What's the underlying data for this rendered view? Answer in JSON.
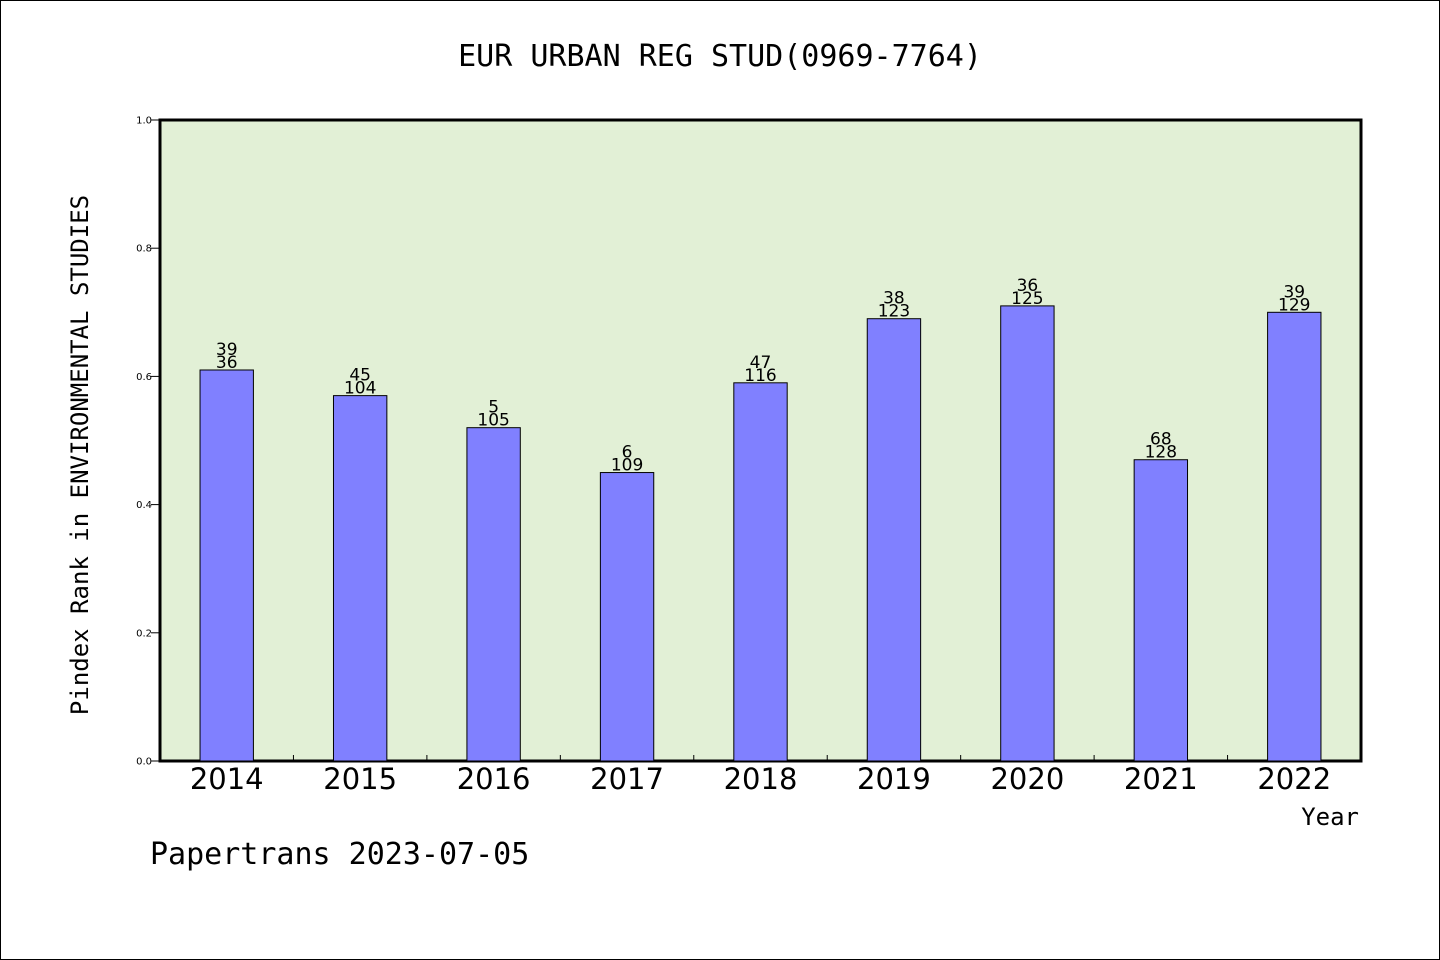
{
  "chart_data": {
    "type": "bar",
    "title": "EUR URBAN REG STUD(0969-7764)",
    "xlabel": "Year",
    "ylabel": "Pindex Rank in ENVIRONMENTAL STUDIES",
    "ylim": [
      0,
      1.0
    ],
    "yticks": [
      "0.0",
      "0.2",
      "0.4",
      "0.6",
      "0.8",
      "1.0"
    ],
    "categories": [
      "2014",
      "2015",
      "2016",
      "2017",
      "2018",
      "2019",
      "2020",
      "2021",
      "2022"
    ],
    "values": [
      0.61,
      0.57,
      0.52,
      0.45,
      0.59,
      0.69,
      0.71,
      0.47,
      0.7
    ],
    "labels_top": [
      "39",
      "45",
      "5",
      "6",
      "47",
      "38",
      "36",
      "68",
      "39"
    ],
    "labels_bottom": [
      "36",
      "104",
      "105",
      "109",
      "116",
      "123",
      "125",
      "128",
      "129"
    ],
    "grid": false,
    "colors": {
      "plot_background": "#e2f0d6",
      "bar_fill": "#8080ff",
      "bar_stroke": "#000000"
    }
  },
  "footer": "Papertrans 2023-07-05"
}
